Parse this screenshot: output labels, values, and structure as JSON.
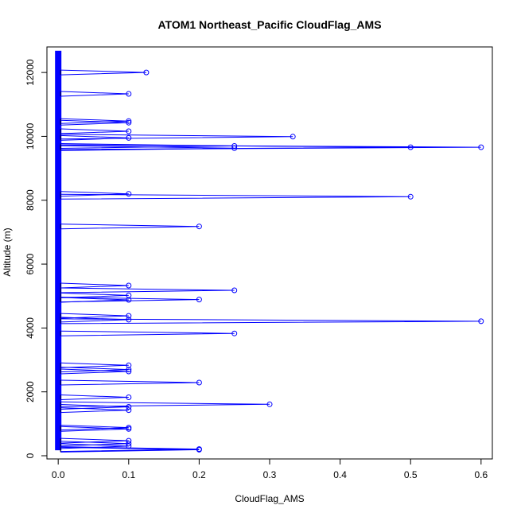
{
  "chart_data": {
    "type": "line",
    "title": "ATOM1 Northeast_Pacific CloudFlag_AMS",
    "xlabel": "CloudFlag_AMS",
    "ylabel": "Altitude (m)",
    "xlim": [
      -0.016,
      0.616
    ],
    "ylim": [
      -100,
      12800
    ],
    "x_ticks": [
      0,
      0.1,
      0.2,
      0.3,
      0.4,
      0.5,
      0.6
    ],
    "x_tick_labels": [
      "0.0",
      "0.1",
      "0.2",
      "0.3",
      "0.4",
      "0.5",
      "0.6"
    ],
    "y_ticks": [
      0,
      2000,
      4000,
      6000,
      8000,
      10000,
      12000
    ],
    "y_tick_labels": [
      "0",
      "2000",
      "4000",
      "6000",
      "8000",
      "10000",
      "12000"
    ],
    "altitude_range": [
      170,
      12680
    ],
    "grid": false,
    "legend": "none",
    "colors": {
      "line": "#0000ff",
      "points": "#0000ff",
      "dark_line": "#000033"
    },
    "spikes": [
      {
        "x": 0.125,
        "y": 12000
      },
      {
        "x": 0.1,
        "y": 11330
      },
      {
        "x": 0.1,
        "y": 10480
      },
      {
        "x": 0.1,
        "y": 10430
      },
      {
        "x": 0.1,
        "y": 10160
      },
      {
        "x": 0.333,
        "y": 9990
      },
      {
        "x": 0.1,
        "y": 9950
      },
      {
        "x": 0.25,
        "y": 9700
      },
      {
        "x": 0.25,
        "y": 9630
      },
      {
        "x": 0.5,
        "y": 9660
      },
      {
        "x": 0.6,
        "y": 9660
      },
      {
        "x": 0.1,
        "y": 8200
      },
      {
        "x": 0.5,
        "y": 8110
      },
      {
        "x": 0.2,
        "y": 7180
      },
      {
        "x": 0.1,
        "y": 5330
      },
      {
        "x": 0.25,
        "y": 5180
      },
      {
        "x": 0.1,
        "y": 5020
      },
      {
        "x": 0.1,
        "y": 4880
      },
      {
        "x": 0.2,
        "y": 4890
      },
      {
        "x": 0.1,
        "y": 4380
      },
      {
        "x": 0.1,
        "y": 4260
      },
      {
        "x": 0.6,
        "y": 4210
      },
      {
        "x": 0.25,
        "y": 3830
      },
      {
        "x": 0.1,
        "y": 2830
      },
      {
        "x": 0.1,
        "y": 2700
      },
      {
        "x": 0.1,
        "y": 2640
      },
      {
        "x": 0.2,
        "y": 2290
      },
      {
        "x": 0.1,
        "y": 1830
      },
      {
        "x": 0.3,
        "y": 1610
      },
      {
        "x": 0.1,
        "y": 1530
      },
      {
        "x": 0.1,
        "y": 1430
      },
      {
        "x": 0.1,
        "y": 880
      },
      {
        "x": 0.1,
        "y": 840
      },
      {
        "x": 0.1,
        "y": 470
      },
      {
        "x": 0.1,
        "y": 380
      },
      {
        "x": 0.1,
        "y": 300
      },
      {
        "x": 0.2,
        "y": 210
      },
      {
        "x": 0.2,
        "y": 190
      }
    ]
  }
}
